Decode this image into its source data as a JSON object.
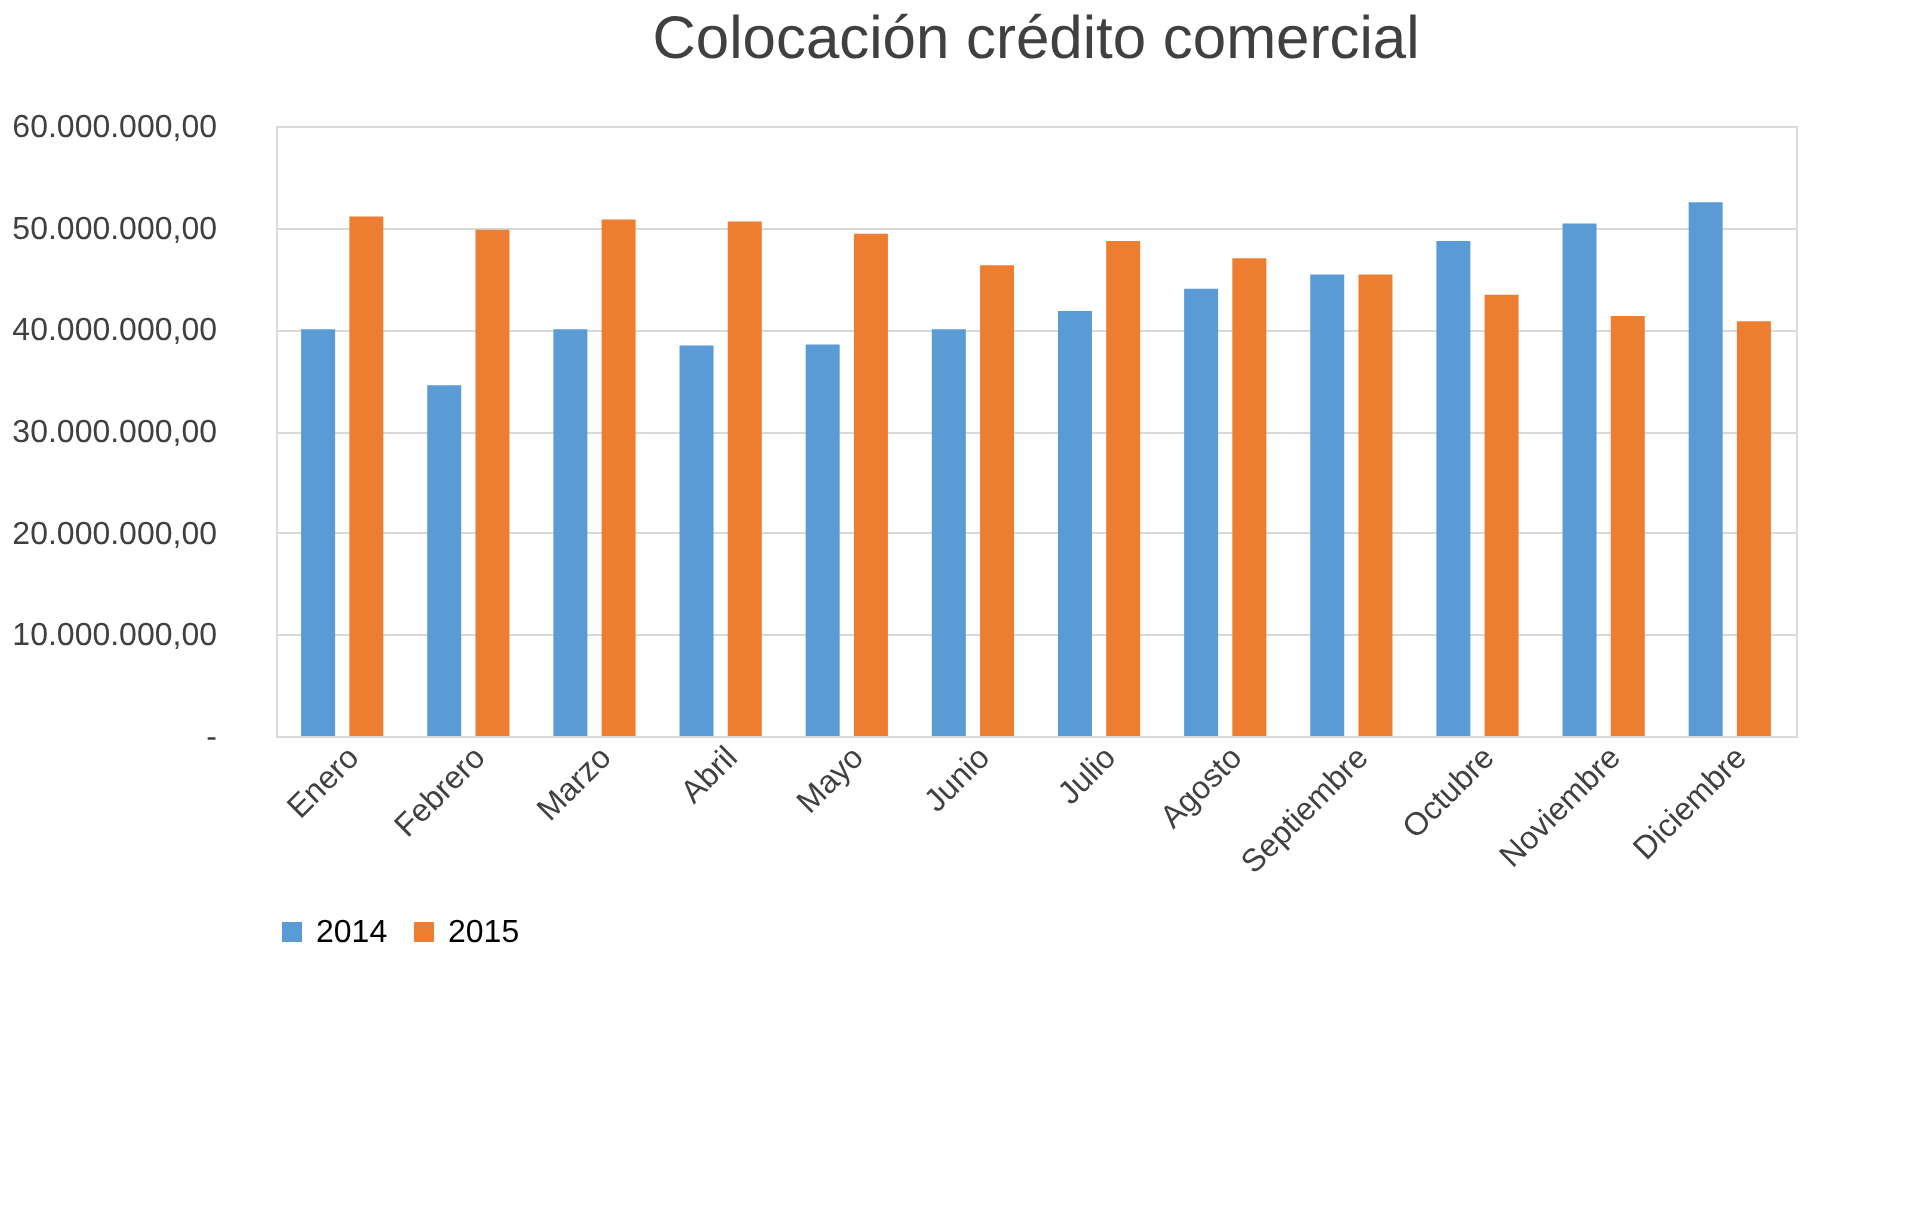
{
  "chart_data": {
    "type": "bar",
    "title": "Colocación crédito comercial",
    "categories": [
      "Enero",
      "Febrero",
      "Marzo",
      "Abril",
      "Mayo",
      "Junio",
      "Julio",
      "Agosto",
      "Septiembre",
      "Octubre",
      "Noviembre",
      "Diciembre"
    ],
    "series": [
      {
        "name": "2014",
        "color": "#5b9bd5",
        "values": [
          40000000,
          34500000,
          40000000,
          38400000,
          38500000,
          40000000,
          41800000,
          44000000,
          45400000,
          48700000,
          50400000,
          52500000
        ]
      },
      {
        "name": "2015",
        "color": "#ed7d31",
        "values": [
          51100000,
          49800000,
          50800000,
          50600000,
          49400000,
          46300000,
          48700000,
          47000000,
          45400000,
          43400000,
          41300000,
          40800000
        ]
      }
    ],
    "ylim": [
      0,
      60000000
    ],
    "yticks": [
      {
        "value": 0,
        "label": "-"
      },
      {
        "value": 10000000,
        "label": "10.000.000,00"
      },
      {
        "value": 20000000,
        "label": "20.000.000,00"
      },
      {
        "value": 30000000,
        "label": "30.000.000,00"
      },
      {
        "value": 40000000,
        "label": "40.000.000,00"
      },
      {
        "value": 50000000,
        "label": "50.000.000,00"
      },
      {
        "value": 60000000,
        "label": "60.000.000,00"
      }
    ],
    "grid": "y",
    "legend": "bottom"
  }
}
